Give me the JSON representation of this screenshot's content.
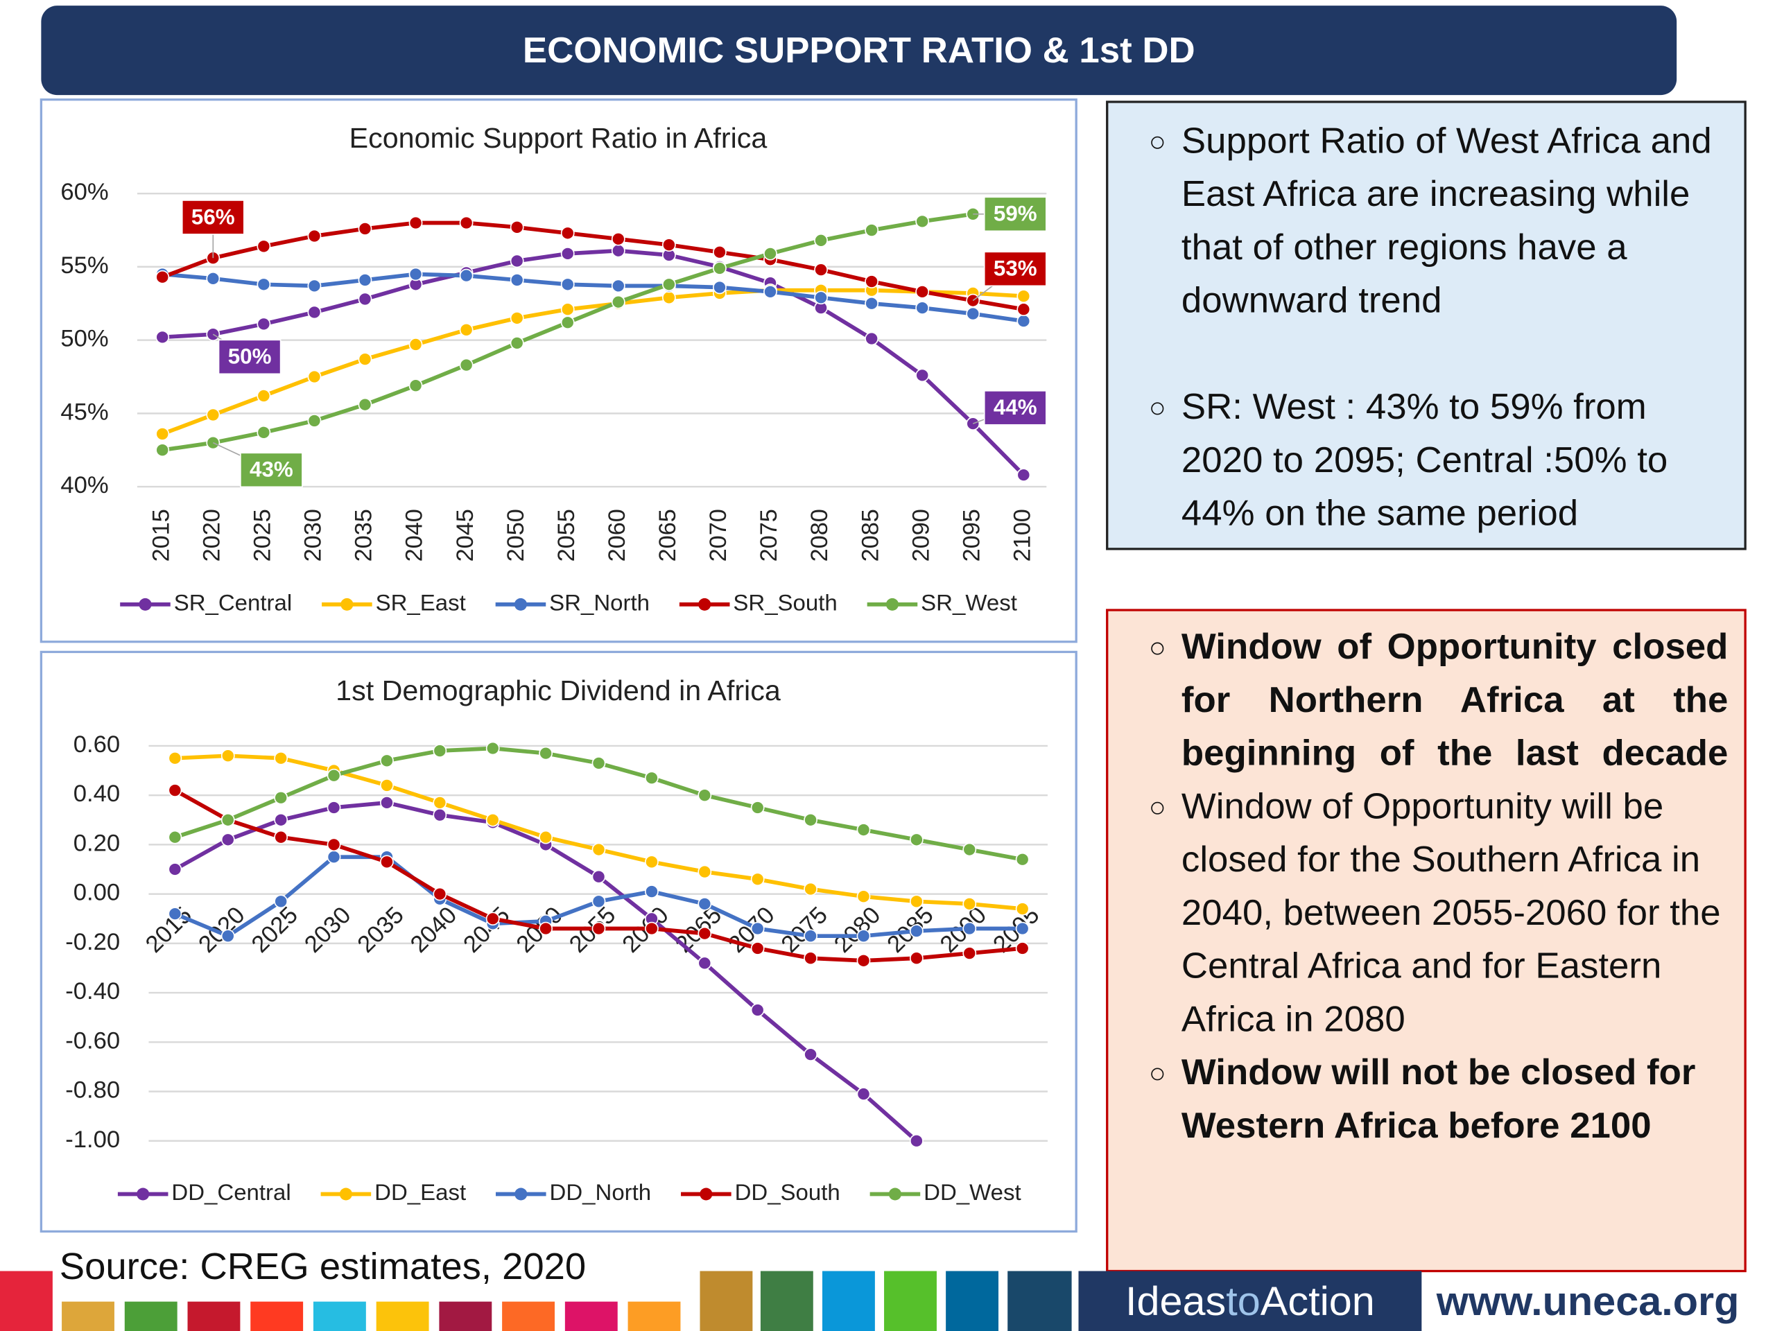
{
  "header": {
    "title": "ECONOMIC SUPPORT RATIO & 1st DD"
  },
  "chart_data": [
    {
      "type": "line",
      "title": "Economic Support Ratio in Africa",
      "categories": [
        "2015",
        "2020",
        "2025",
        "2030",
        "2035",
        "2040",
        "2045",
        "2050",
        "2055",
        "2060",
        "2065",
        "2070",
        "2075",
        "2080",
        "2085",
        "2090",
        "2095",
        "2100"
      ],
      "ylim": [
        40,
        60
      ],
      "yticks": [
        {
          "value": 40,
          "label": "40%"
        },
        {
          "value": 45,
          "label": "45%"
        },
        {
          "value": 50,
          "label": "50%"
        },
        {
          "value": 55,
          "label": "55%"
        },
        {
          "value": 60,
          "label": "60%"
        }
      ],
      "grid": true,
      "legend": "bottom",
      "series": [
        {
          "name": "SR_Central",
          "color": "#7030a0",
          "values": [
            50.2,
            50.4,
            51.1,
            51.9,
            52.8,
            53.8,
            54.6,
            55.4,
            55.9,
            56.1,
            55.8,
            55.0,
            53.9,
            52.2,
            50.1,
            47.6,
            44.3,
            40.8
          ],
          "value_labels": [
            null,
            "50%",
            null,
            null,
            null,
            null,
            null,
            null,
            null,
            null,
            null,
            null,
            null,
            null,
            null,
            null,
            "44%",
            null
          ]
        },
        {
          "name": "SR_East",
          "color": "#ffc000",
          "values": [
            43.6,
            44.9,
            46.2,
            47.5,
            48.7,
            49.7,
            50.7,
            51.5,
            52.1,
            52.5,
            52.9,
            53.2,
            53.4,
            53.4,
            53.4,
            53.3,
            53.2,
            53.0
          ]
        },
        {
          "name": "SR_North",
          "color": "#4472c4",
          "values": [
            54.5,
            54.2,
            53.8,
            53.7,
            54.1,
            54.5,
            54.4,
            54.1,
            53.8,
            53.7,
            53.7,
            53.6,
            53.3,
            52.9,
            52.5,
            52.2,
            51.8,
            51.3
          ]
        },
        {
          "name": "SR_South",
          "color": "#c00000",
          "values": [
            54.3,
            55.6,
            56.4,
            57.1,
            57.6,
            58.0,
            58.0,
            57.7,
            57.3,
            56.9,
            56.5,
            56.0,
            55.5,
            54.8,
            54.0,
            53.3,
            52.7,
            52.1
          ],
          "value_labels": [
            null,
            "56%",
            null,
            null,
            null,
            null,
            null,
            null,
            null,
            null,
            null,
            null,
            null,
            null,
            null,
            null,
            "53%",
            null
          ]
        },
        {
          "name": "SR_West",
          "color": "#70ad47",
          "values": [
            42.5,
            43.0,
            43.7,
            44.5,
            45.6,
            46.9,
            48.3,
            49.8,
            51.2,
            52.6,
            53.8,
            54.9,
            55.9,
            56.8,
            57.5,
            58.1,
            58.6,
            null
          ],
          "value_labels": [
            null,
            "43%",
            null,
            null,
            null,
            null,
            null,
            null,
            null,
            null,
            null,
            null,
            null,
            null,
            null,
            null,
            "59%",
            null
          ]
        }
      ]
    },
    {
      "type": "line",
      "title": "1st Demographic Dividend in Africa",
      "categories": [
        "2015",
        "2020",
        "2025",
        "2030",
        "2035",
        "2040",
        "2045",
        "2050",
        "2055",
        "2060",
        "2065",
        "2070",
        "2075",
        "2080",
        "2085",
        "2090",
        "2095"
      ],
      "ylim": [
        -1,
        0.6
      ],
      "yticks": [
        {
          "value": -1,
          "label": "-1.00"
        },
        {
          "value": -0.8,
          "label": "-0.80"
        },
        {
          "value": -0.6,
          "label": "-0.60"
        },
        {
          "value": -0.4,
          "label": "-0.40"
        },
        {
          "value": -0.2,
          "label": "-0.20"
        },
        {
          "value": 0,
          "label": "0.00"
        },
        {
          "value": 0.2,
          "label": "0.20"
        },
        {
          "value": 0.4,
          "label": "0.40"
        },
        {
          "value": 0.6,
          "label": "0.60"
        }
      ],
      "grid": true,
      "legend": "bottom",
      "series": [
        {
          "name": "DD_Central",
          "color": "#7030a0",
          "values": [
            0.1,
            0.22,
            0.3,
            0.35,
            0.37,
            0.32,
            0.29,
            0.2,
            0.07,
            -0.1,
            -0.28,
            -0.47,
            -0.65,
            -0.81,
            -1.0,
            null,
            null
          ]
        },
        {
          "name": "DD_East",
          "color": "#ffc000",
          "values": [
            0.55,
            0.56,
            0.55,
            0.5,
            0.44,
            0.37,
            0.3,
            0.23,
            0.18,
            0.13,
            0.09,
            0.06,
            0.02,
            -0.01,
            -0.03,
            -0.04,
            -0.06
          ]
        },
        {
          "name": "DD_North",
          "color": "#4472c4",
          "values": [
            -0.08,
            -0.17,
            -0.03,
            0.15,
            0.15,
            -0.02,
            -0.12,
            -0.11,
            -0.03,
            0.01,
            -0.04,
            -0.14,
            -0.17,
            -0.17,
            -0.15,
            -0.14,
            -0.14
          ]
        },
        {
          "name": "DD_South",
          "color": "#c00000",
          "values": [
            0.42,
            0.3,
            0.23,
            0.2,
            0.13,
            0.0,
            -0.1,
            -0.14,
            -0.14,
            -0.14,
            -0.16,
            -0.22,
            -0.26,
            -0.27,
            -0.26,
            -0.24,
            -0.22
          ]
        },
        {
          "name": "DD_West",
          "color": "#70ad47",
          "values": [
            0.23,
            0.3,
            0.39,
            0.48,
            0.54,
            0.58,
            0.59,
            0.57,
            0.53,
            0.47,
            0.4,
            0.35,
            0.3,
            0.26,
            0.22,
            0.18,
            0.14
          ]
        }
      ]
    }
  ],
  "panels": [
    {
      "items": [
        {
          "text": "Support Ratio of West Africa and East Africa are increasing while that of other regions have a downward trend",
          "bold": false
        },
        {
          "text": "SR: West : 43% to 59% from 2020 to 2095; Central :50% to 44% on the same period",
          "bold": false
        }
      ]
    },
    {
      "items": [
        {
          "text": "Window of Opportunity closed for Northern Africa at the beginning of the last decade",
          "bold": true
        },
        {
          "text": "Window of Opportunity will be closed for the Southern Africa in 2040, between 2055-2060 for the Central Africa and for Eastern Africa in 2080",
          "bold": false
        },
        {
          "text": "Window will not be closed for Western Africa before 2100",
          "bold": true
        }
      ]
    }
  ],
  "source": "Source: CREG estimates, 2020",
  "footer": {
    "brand_a": "Ideas",
    "brand_b": "to",
    "brand_c": "Action",
    "url": "www.uneca.org"
  }
}
